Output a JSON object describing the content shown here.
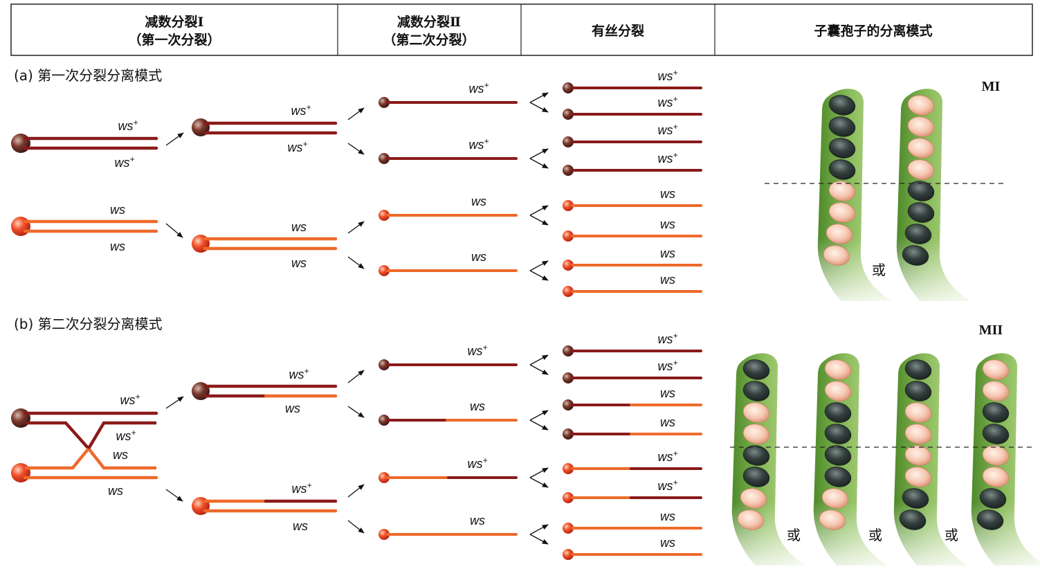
{
  "header": {
    "col1_line1": "减数分裂Ⅰ",
    "col1_line2": "（第一次分裂）",
    "col2_line1": "减数分裂Ⅱ",
    "col2_line2": "（第二次分裂）",
    "col3": "有丝分裂",
    "col4": "子囊孢子的分离模式"
  },
  "sections": {
    "a_title": "(a) 第一次分裂分离模式",
    "b_title": "(b) 第二次分裂分离模式"
  },
  "alleles": {
    "ws_plus": "ws",
    "ws": "ws",
    "plus": "+"
  },
  "asci": {
    "mi_label": "MI",
    "mii_label": "MII",
    "or": "或",
    "mi_patterns": [
      [
        "d",
        "d",
        "d",
        "d",
        "l",
        "l",
        "l",
        "l"
      ],
      [
        "l",
        "l",
        "l",
        "l",
        "d",
        "d",
        "d",
        "d"
      ]
    ],
    "mii_patterns": [
      [
        "d",
        "d",
        "l",
        "l",
        "d",
        "d",
        "l",
        "l"
      ],
      [
        "l",
        "l",
        "d",
        "d",
        "d",
        "d",
        "l",
        "l"
      ],
      [
        "d",
        "d",
        "l",
        "l",
        "l",
        "l",
        "d",
        "d"
      ],
      [
        "l",
        "l",
        "d",
        "d",
        "l",
        "l",
        "d",
        "d"
      ]
    ]
  },
  "colors": {
    "dark_allele": "#8a1a1a",
    "light_allele": "#ee6a2a",
    "dark_centromere": "#6b2a22",
    "light_centromere": "#e84a2a",
    "ascus_green": "#8db85a",
    "spore_dark": "#2e3a38",
    "spore_light": "#f2c0a8"
  }
}
